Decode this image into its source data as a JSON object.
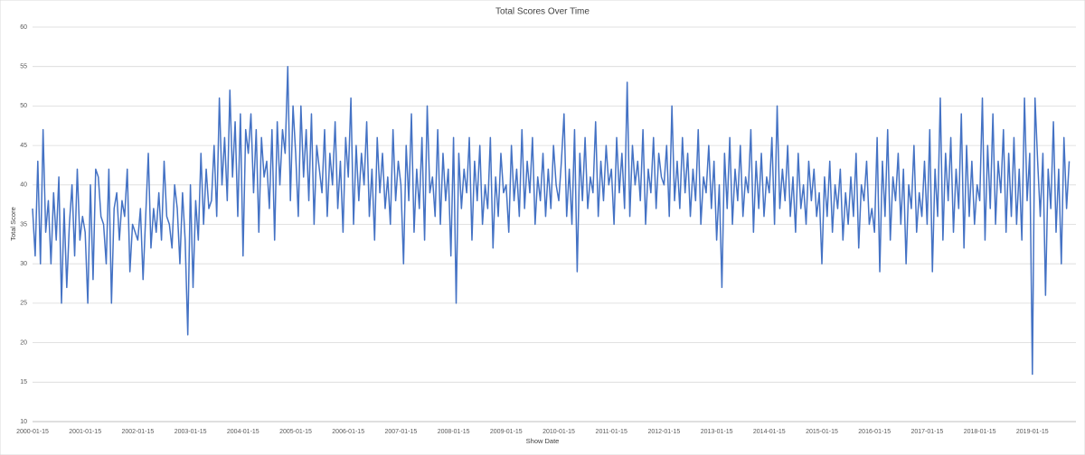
{
  "chart_data": {
    "type": "line",
    "title": "Total Scores Over Time",
    "x_label": "Show Date",
    "y_label": "Total Score",
    "categories": [
      "2000-01-15",
      null,
      null,
      null,
      null,
      null,
      null,
      null,
      null,
      null,
      null,
      null,
      null,
      null,
      null,
      null,
      null,
      null,
      null,
      null,
      "2001-01-15",
      null,
      null,
      null,
      null,
      null,
      null,
      null,
      null,
      null,
      null,
      null,
      null,
      null,
      null,
      null,
      null,
      null,
      null,
      null,
      "2002-01-15",
      null,
      null,
      null,
      null,
      null,
      null,
      null,
      null,
      null,
      null,
      null,
      null,
      null,
      null,
      null,
      null,
      null,
      null,
      null,
      "2003-01-15",
      null,
      null,
      null,
      null,
      null,
      null,
      null,
      null,
      null,
      null,
      null,
      null,
      null,
      null,
      null,
      null,
      null,
      null,
      null,
      "2004-01-15",
      null,
      null,
      null,
      null,
      null,
      null,
      null,
      null,
      null,
      null,
      null,
      null,
      null,
      null,
      null,
      null,
      null,
      null,
      null,
      "2005-01-15",
      null,
      null,
      null,
      null,
      null,
      null,
      null,
      null,
      null,
      null,
      null,
      null,
      null,
      null,
      null,
      null,
      null,
      null,
      null,
      "2006-01-15",
      null,
      null,
      null,
      null,
      null,
      null,
      null,
      null,
      null,
      null,
      null,
      null,
      null,
      null,
      null,
      null,
      null,
      null,
      null,
      "2007-01-15",
      null,
      null,
      null,
      null,
      null,
      null,
      null,
      null,
      null,
      null,
      null,
      null,
      null,
      null,
      null,
      null,
      null,
      null,
      null,
      "2008-01-15",
      null,
      null,
      null,
      null,
      null,
      null,
      null,
      null,
      null,
      null,
      null,
      null,
      null,
      null,
      null,
      null,
      null,
      null,
      null,
      "2009-01-15",
      null,
      null,
      null,
      null,
      null,
      null,
      null,
      null,
      null,
      null,
      null,
      null,
      null,
      null,
      null,
      null,
      null,
      null,
      null,
      "2010-01-15",
      null,
      null,
      null,
      null,
      null,
      null,
      null,
      null,
      null,
      null,
      null,
      null,
      null,
      null,
      null,
      null,
      null,
      null,
      null,
      "2011-01-15",
      null,
      null,
      null,
      null,
      null,
      null,
      null,
      null,
      null,
      null,
      null,
      null,
      null,
      null,
      null,
      null,
      null,
      null,
      null,
      "2012-01-15",
      null,
      null,
      null,
      null,
      null,
      null,
      null,
      null,
      null,
      null,
      null,
      null,
      null,
      null,
      null,
      null,
      null,
      null,
      null,
      "2013-01-15",
      null,
      null,
      null,
      null,
      null,
      null,
      null,
      null,
      null,
      null,
      null,
      null,
      null,
      null,
      null,
      null,
      null,
      null,
      null,
      "2014-01-15",
      null,
      null,
      null,
      null,
      null,
      null,
      null,
      null,
      null,
      null,
      null,
      null,
      null,
      null,
      null,
      null,
      null,
      null,
      null,
      "2015-01-15",
      null,
      null,
      null,
      null,
      null,
      null,
      null,
      null,
      null,
      null,
      null,
      null,
      null,
      null,
      null,
      null,
      null,
      null,
      null,
      "2016-01-15",
      null,
      null,
      null,
      null,
      null,
      null,
      null,
      null,
      null,
      null,
      null,
      null,
      null,
      null,
      null,
      null,
      null,
      null,
      null,
      "2017-01-15",
      null,
      null,
      null,
      null,
      null,
      null,
      null,
      null,
      null,
      null,
      null,
      null,
      null,
      null,
      null,
      null,
      null,
      null,
      null,
      "2018-01-15",
      null,
      null,
      null,
      null,
      null,
      null,
      null,
      null,
      null,
      null,
      null,
      null,
      null,
      null,
      null,
      null,
      null,
      null,
      null,
      "2019-01-15",
      null,
      null,
      null,
      null,
      null,
      null,
      null,
      null,
      null,
      null,
      null,
      null,
      null,
      null
    ],
    "values": [
      37,
      31,
      43,
      30,
      47,
      34,
      38,
      30,
      39,
      33,
      41,
      25,
      37,
      27,
      35,
      40,
      31,
      42,
      33,
      36,
      34,
      25,
      40,
      28,
      42,
      41,
      36,
      35,
      30,
      42,
      25,
      37,
      39,
      33,
      38,
      36,
      42,
      29,
      35,
      34,
      33,
      37,
      28,
      36,
      44,
      32,
      37,
      34,
      39,
      33,
      43,
      36,
      35,
      32,
      40,
      37,
      30,
      39,
      33,
      21,
      40,
      27,
      38,
      33,
      44,
      35,
      42,
      37,
      38,
      45,
      36,
      51,
      40,
      46,
      38,
      52,
      41,
      48,
      36,
      49,
      31,
      47,
      44,
      49,
      39,
      47,
      34,
      46,
      41,
      43,
      37,
      47,
      33,
      48,
      40,
      47,
      44,
      55,
      38,
      50,
      44,
      36,
      50,
      41,
      47,
      38,
      49,
      35,
      45,
      42,
      39,
      47,
      36,
      44,
      40,
      48,
      37,
      43,
      34,
      46,
      41,
      51,
      35,
      45,
      38,
      44,
      40,
      48,
      36,
      42,
      33,
      46,
      39,
      44,
      37,
      41,
      35,
      47,
      38,
      43,
      40,
      30,
      45,
      38,
      49,
      34,
      42,
      37,
      46,
      33,
      50,
      39,
      41,
      36,
      47,
      35,
      44,
      38,
      42,
      31,
      46,
      25,
      44,
      37,
      42,
      39,
      46,
      33,
      43,
      38,
      45,
      35,
      40,
      37,
      46,
      32,
      41,
      36,
      44,
      39,
      40,
      34,
      45,
      38,
      42,
      36,
      47,
      37,
      43,
      39,
      46,
      35,
      41,
      38,
      44,
      36,
      42,
      37,
      45,
      40,
      38,
      43,
      49,
      36,
      42,
      35,
      47,
      29,
      44,
      38,
      46,
      37,
      41,
      39,
      48,
      36,
      43,
      38,
      45,
      40,
      42,
      35,
      46,
      39,
      44,
      37,
      53,
      36,
      45,
      40,
      43,
      38,
      47,
      35,
      42,
      39,
      46,
      37,
      44,
      41,
      40,
      45,
      36,
      50,
      38,
      43,
      37,
      46,
      39,
      44,
      36,
      42,
      38,
      47,
      35,
      41,
      39,
      45,
      37,
      43,
      33,
      40,
      27,
      44,
      37,
      46,
      35,
      42,
      38,
      45,
      36,
      41,
      39,
      47,
      34,
      43,
      37,
      44,
      36,
      41,
      39,
      46,
      35,
      50,
      37,
      42,
      38,
      45,
      36,
      41,
      34,
      44,
      37,
      40,
      35,
      43,
      38,
      42,
      36,
      39,
      30,
      41,
      36,
      43,
      34,
      40,
      37,
      42,
      33,
      39,
      35,
      41,
      36,
      44,
      32,
      40,
      38,
      43,
      35,
      37,
      34,
      46,
      29,
      43,
      36,
      47,
      33,
      41,
      38,
      44,
      35,
      42,
      30,
      40,
      37,
      45,
      34,
      39,
      36,
      43,
      35,
      47,
      29,
      42,
      36,
      51,
      33,
      44,
      38,
      46,
      34,
      42,
      37,
      49,
      32,
      45,
      36,
      43,
      35,
      40,
      38,
      51,
      33,
      45,
      37,
      49,
      35,
      43,
      39,
      47,
      34,
      44,
      36,
      46,
      35,
      42,
      33,
      51,
      38,
      44,
      16,
      51,
      43,
      36,
      44,
      26,
      42,
      37,
      48,
      34,
      42,
      30,
      46,
      37,
      43
    ],
    "color": "#4472c4",
    "ylim": [
      10,
      60
    ],
    "yticks": [
      10,
      15,
      20,
      25,
      30,
      35,
      40,
      45,
      50,
      55,
      60
    ],
    "grid": true
  }
}
